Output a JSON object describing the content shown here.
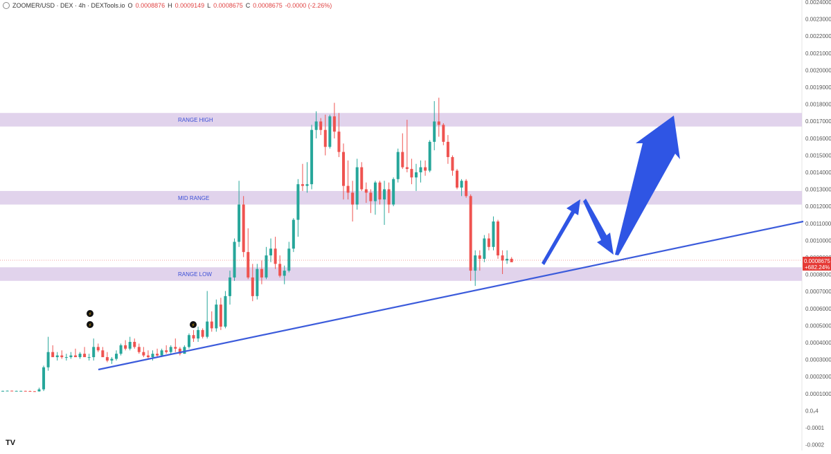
{
  "header": {
    "symbol": "ZOOMER/USD · DEX · 4h · DEXTools.io",
    "o_label": "O",
    "o_value": "0.0008876",
    "h_label": "H",
    "h_value": "0.0009149",
    "l_label": "L",
    "l_value": "0.0008675",
    "c_label": "C",
    "c_value": "0.0008675",
    "change": "-0.0000 (-2.26%)"
  },
  "colors": {
    "up": "#26a69a",
    "down": "#ef5350",
    "zone": "#dccbe9",
    "trendline": "#3b5bdb",
    "arrow": "#2f55e4",
    "price_tag": "#e53935",
    "zone_label": "#3b4fd6"
  },
  "price_tag": {
    "price": "0.0008675",
    "change": "+682.24%"
  },
  "tv_logo": "TV",
  "chart_data": {
    "type": "candlestick",
    "y_axis_ticks": [
      "0.0024000",
      "0.0023000",
      "0.0022000",
      "0.0021000",
      "0.0020000",
      "0.0019000",
      "0.0018000",
      "0.0017000",
      "0.0016000",
      "0.0015000",
      "0.0014000",
      "0.0013000",
      "0.0012000",
      "0.0011000",
      "0.0010000",
      "0.0009000",
      "0.0008000",
      "0.0007000",
      "0.0006000",
      "0.0005000",
      "0.0004000",
      "0.0003000",
      "0.0002000",
      "0.0001000",
      "0.0₂4",
      "-0.0001",
      "-0.0002"
    ],
    "ylim": [
      -0.0002,
      0.0024
    ],
    "zones": [
      {
        "label": "RANGE HIGH",
        "low": 0.00167,
        "high": 0.00175
      },
      {
        "label": "MID RANGE",
        "low": 0.00121,
        "high": 0.00129
      },
      {
        "label": "RANGE LOW",
        "low": 0.00076,
        "high": 0.00084
      }
    ],
    "candles": [
      [
        0.00011,
        0.000112,
        0.00011,
        0.000111
      ],
      [
        0.000111,
        0.000113,
        0.00011,
        0.000112
      ],
      [
        0.000112,
        0.000113,
        0.00011,
        0.00011
      ],
      [
        0.00011,
        0.000112,
        0.00011,
        0.000111
      ],
      [
        0.000111,
        0.000112,
        0.000109,
        0.000111
      ],
      [
        0.000111,
        0.000112,
        0.000109,
        0.00011
      ],
      [
        0.00011,
        0.000112,
        0.000108,
        0.000109
      ],
      [
        0.000109,
        0.00011,
        0.000106,
        0.000108
      ],
      [
        0.000108,
        0.00013,
        0.000107,
        0.00012
      ],
      [
        0.00012,
        0.00026,
        0.00011,
        0.00025
      ],
      [
        0.00025,
        0.00043,
        0.00023,
        0.00034
      ],
      [
        0.00034,
        0.00038,
        0.00031,
        0.00031
      ],
      [
        0.00031,
        0.00034,
        0.00029,
        0.00032
      ],
      [
        0.00032,
        0.00035,
        0.0003,
        0.00031
      ],
      [
        0.00031,
        0.00033,
        0.00029,
        0.00031
      ],
      [
        0.00031,
        0.00034,
        0.0003,
        0.00032
      ],
      [
        0.00032,
        0.00036,
        0.00031,
        0.00031
      ],
      [
        0.00031,
        0.00034,
        0.0003,
        0.00033
      ],
      [
        0.00033,
        0.00037,
        0.00031,
        0.00031
      ],
      [
        0.00031,
        0.00033,
        0.00029,
        0.00031
      ],
      [
        0.00031,
        0.00042,
        0.00029,
        0.00037
      ],
      [
        0.00037,
        0.00039,
        0.00034,
        0.00035
      ],
      [
        0.00035,
        0.00037,
        0.00031,
        0.00031
      ],
      [
        0.00031,
        0.00034,
        0.00028,
        0.00029
      ],
      [
        0.00029,
        0.00031,
        0.00027,
        0.0003
      ],
      [
        0.0003,
        0.00035,
        0.00029,
        0.00033
      ],
      [
        0.00033,
        0.00039,
        0.00032,
        0.00038
      ],
      [
        0.00038,
        0.00041,
        0.00035,
        0.00036
      ],
      [
        0.00036,
        0.00043,
        0.00035,
        0.0004
      ],
      [
        0.0004,
        0.00042,
        0.00036,
        0.00037
      ],
      [
        0.00037,
        0.00039,
        0.00033,
        0.00034
      ],
      [
        0.00034,
        0.00037,
        0.00031,
        0.00032
      ],
      [
        0.00032,
        0.00035,
        0.0003,
        0.00031
      ],
      [
        0.00031,
        0.00035,
        0.00029,
        0.00033
      ],
      [
        0.00033,
        0.00036,
        0.00031,
        0.00032
      ],
      [
        0.00032,
        0.00036,
        0.00031,
        0.00035
      ],
      [
        0.00035,
        0.00038,
        0.00033,
        0.00034
      ],
      [
        0.00034,
        0.00038,
        0.00033,
        0.00037
      ],
      [
        0.00037,
        0.00042,
        0.00034,
        0.00036
      ],
      [
        0.00036,
        0.00037,
        0.00032,
        0.00033
      ],
      [
        0.00033,
        0.00038,
        0.00033,
        0.00037
      ],
      [
        0.00037,
        0.00045,
        0.00036,
        0.00044
      ],
      [
        0.00044,
        0.00047,
        0.0004,
        0.00042
      ],
      [
        0.00042,
        0.00049,
        0.0004,
        0.00047
      ],
      [
        0.00047,
        0.00048,
        0.00042,
        0.00043
      ],
      [
        0.00043,
        0.0007,
        0.00042,
        0.00052
      ],
      [
        0.00052,
        0.00058,
        0.00046,
        0.00048
      ],
      [
        0.00048,
        0.00065,
        0.00046,
        0.00062
      ],
      [
        0.00062,
        0.00066,
        0.00047,
        0.00049
      ],
      [
        0.00049,
        0.0007,
        0.00048,
        0.00067
      ],
      [
        0.00067,
        0.00082,
        0.00062,
        0.00078
      ],
      [
        0.00078,
        0.00101,
        0.00076,
        0.00099
      ],
      [
        0.00099,
        0.00135,
        0.00096,
        0.00121
      ],
      [
        0.00121,
        0.00126,
        0.0009,
        0.00093
      ],
      [
        0.00093,
        0.00107,
        0.00077,
        0.00078
      ],
      [
        0.00078,
        0.00086,
        0.00064,
        0.00067
      ],
      [
        0.00067,
        0.00086,
        0.00065,
        0.00083
      ],
      [
        0.00083,
        0.00088,
        0.00074,
        0.00078
      ],
      [
        0.00078,
        0.00096,
        0.00077,
        0.00091
      ],
      [
        0.00091,
        0.00101,
        0.00087,
        0.00095
      ],
      [
        0.00095,
        0.00102,
        0.00083,
        0.00086
      ],
      [
        0.00086,
        0.00091,
        0.00078,
        0.00079
      ],
      [
        0.00079,
        0.00085,
        0.00074,
        0.00082
      ],
      [
        0.00082,
        0.00099,
        0.00081,
        0.00095
      ],
      [
        0.00095,
        0.00113,
        0.00093,
        0.00112
      ],
      [
        0.00112,
        0.00136,
        0.00102,
        0.00133
      ],
      [
        0.00133,
        0.00145,
        0.00129,
        0.00132
      ],
      [
        0.00132,
        0.00146,
        0.00128,
        0.00133
      ],
      [
        0.00133,
        0.00168,
        0.0013,
        0.00165
      ],
      [
        0.00165,
        0.00176,
        0.0016,
        0.0017
      ],
      [
        0.0017,
        0.00172,
        0.00162,
        0.00165
      ],
      [
        0.00165,
        0.00174,
        0.0015,
        0.00155
      ],
      [
        0.00155,
        0.00174,
        0.00154,
        0.00173
      ],
      [
        0.00173,
        0.00181,
        0.0016,
        0.00164
      ],
      [
        0.00164,
        0.00175,
        0.00149,
        0.00152
      ],
      [
        0.00152,
        0.00157,
        0.00124,
        0.00132
      ],
      [
        0.00132,
        0.00147,
        0.00124,
        0.00128
      ],
      [
        0.00128,
        0.00135,
        0.00111,
        0.00121
      ],
      [
        0.00121,
        0.00148,
        0.00118,
        0.00143
      ],
      [
        0.00143,
        0.00146,
        0.00129,
        0.0013
      ],
      [
        0.0013,
        0.00134,
        0.00122,
        0.00128
      ],
      [
        0.00128,
        0.0013,
        0.00116,
        0.00123
      ],
      [
        0.00123,
        0.00135,
        0.00115,
        0.00134
      ],
      [
        0.00134,
        0.00135,
        0.00121,
        0.00124
      ],
      [
        0.00124,
        0.00135,
        0.00109,
        0.0013
      ],
      [
        0.0013,
        0.00134,
        0.00116,
        0.00121
      ],
      [
        0.00121,
        0.00137,
        0.0012,
        0.00136
      ],
      [
        0.00136,
        0.00154,
        0.00134,
        0.00152
      ],
      [
        0.00152,
        0.00163,
        0.00142,
        0.00143
      ],
      [
        0.00143,
        0.00171,
        0.0014,
        0.00142
      ],
      [
        0.00142,
        0.00148,
        0.00133,
        0.00137
      ],
      [
        0.00137,
        0.00145,
        0.00129,
        0.0014
      ],
      [
        0.0014,
        0.00147,
        0.00134,
        0.00143
      ],
      [
        0.00143,
        0.00147,
        0.00138,
        0.00141
      ],
      [
        0.00141,
        0.00159,
        0.0014,
        0.00158
      ],
      [
        0.00158,
        0.00182,
        0.00153,
        0.0017
      ],
      [
        0.0017,
        0.00184,
        0.00161,
        0.00168
      ],
      [
        0.00168,
        0.00169,
        0.00156,
        0.00158
      ],
      [
        0.00158,
        0.00162,
        0.00145,
        0.00149
      ],
      [
        0.00149,
        0.0015,
        0.00138,
        0.00141
      ],
      [
        0.00141,
        0.00142,
        0.0013,
        0.00131
      ],
      [
        0.00131,
        0.00136,
        0.00126,
        0.00135
      ],
      [
        0.00135,
        0.00136,
        0.00125,
        0.00126
      ],
      [
        0.00126,
        0.00127,
        0.00076,
        0.00082
      ],
      [
        0.00082,
        0.00094,
        0.00073,
        0.00091
      ],
      [
        0.00091,
        0.00094,
        0.00082,
        0.00089
      ],
      [
        0.00089,
        0.00103,
        0.00087,
        0.00101
      ],
      [
        0.00101,
        0.00104,
        0.00094,
        0.00096
      ],
      [
        0.00096,
        0.00114,
        0.00094,
        0.00111
      ],
      [
        0.00111,
        0.00112,
        0.00089,
        0.00091
      ],
      [
        0.00091,
        0.00094,
        0.0008,
        0.00088
      ],
      [
        0.00088,
        0.00094,
        0.00086,
        0.00089
      ],
      [
        0.00089,
        0.0009,
        0.00087,
        0.00087
      ]
    ]
  }
}
